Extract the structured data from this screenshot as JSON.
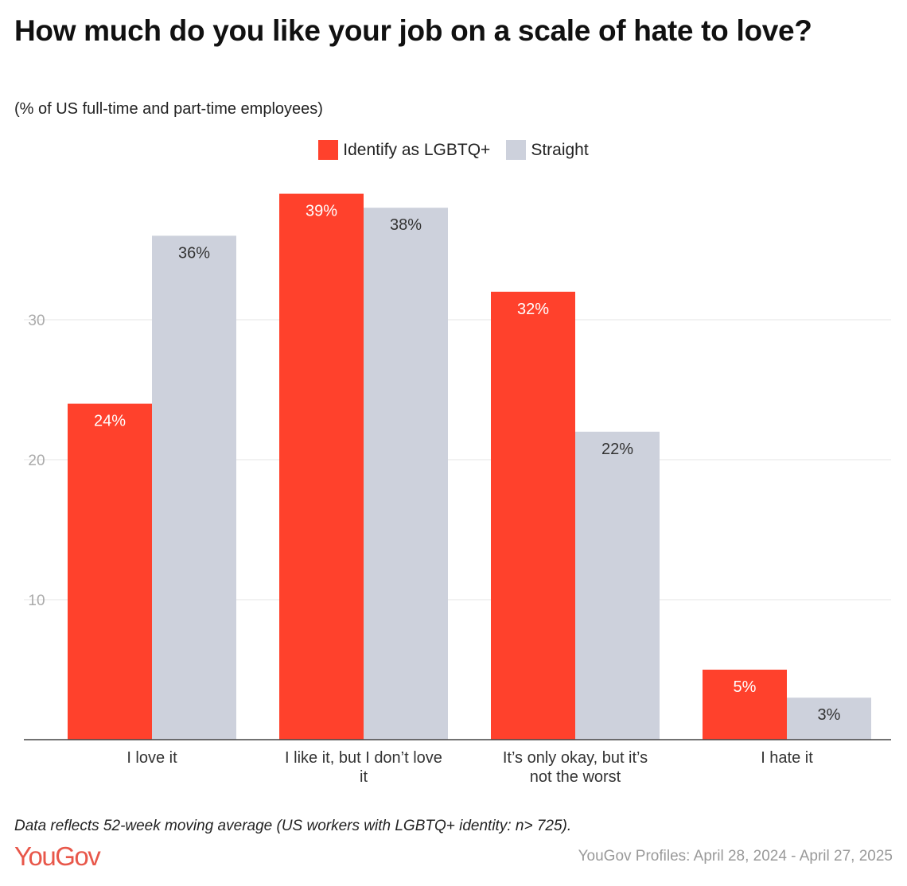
{
  "title": "How much do you like your job on a scale of hate to love?",
  "subtitle": "(% of US full-time and part-time employees)",
  "note": "Data reflects 52-week moving average (US workers with LGBTQ+ identity: n> 725).",
  "logo": "YouGov",
  "source": "YouGov Profiles: April 28, 2024 - April 27, 2025",
  "chart_data": {
    "type": "bar",
    "title": "How much do you like your job on a scale of hate to love?",
    "subtitle": "(% of US full-time and part-time employees)",
    "categories": [
      [
        "I love it"
      ],
      [
        "I like it, but I don’t love",
        "it"
      ],
      [
        "It’s only okay, but it’s",
        "not the worst"
      ],
      [
        "I hate it"
      ]
    ],
    "series": [
      {
        "name": "Identify as LGBTQ+",
        "color": "#FF412C",
        "values": [
          24,
          39,
          32,
          5
        ],
        "labels": [
          "24%",
          "39%",
          "32%",
          "5%"
        ]
      },
      {
        "name": "Straight",
        "color": "#CDD1DC",
        "values": [
          36,
          38,
          22,
          3
        ],
        "labels": [
          "36%",
          "38%",
          "22%",
          "3%"
        ]
      }
    ],
    "yticks": [
      10,
      20,
      30
    ],
    "ylim": [
      0,
      40
    ],
    "grid": true,
    "legend": "top-center",
    "xlabel": "",
    "ylabel": ""
  }
}
